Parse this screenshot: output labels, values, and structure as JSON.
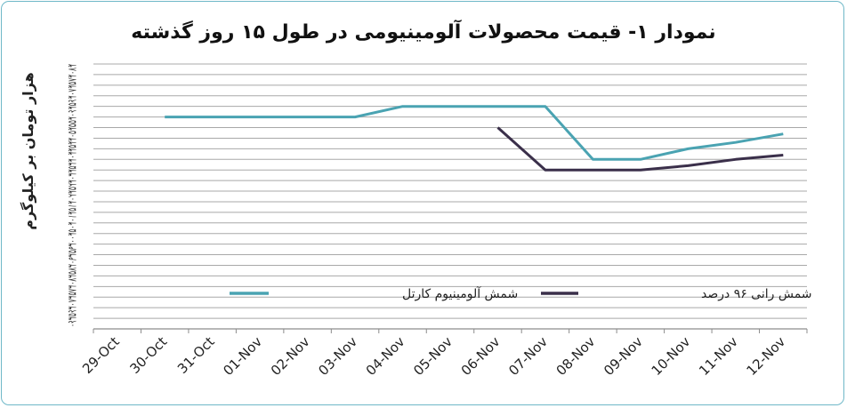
{
  "chart_data": {
    "type": "line",
    "title": "نمودار ۱- قیمت محصولات آلومینیومی در طول ۱۵ روز گذشته",
    "ylabel": "هزار تومان بر کیلوگرم",
    "categories": [
      "29-Oct",
      "30-Oct",
      "31-Oct",
      "01-Nov",
      "02-Nov",
      "03-Nov",
      "04-Nov",
      "05-Nov",
      "06-Nov",
      "07-Nov",
      "08-Nov",
      "09-Nov",
      "10-Nov",
      "11-Nov",
      "12-Nov"
    ],
    "yticks_raw": "۴۸۰۴۷۵۴۷۰۴۶۵۴۶۰۴۵۵۴۵۰۴۴۵۴۴۰۴۳۵۴۳۰۴۲۵۴۲۰۴۱۵۴۱۰۴۰۵۴۰۰۳۹۵۳۹۰۳۸۵۳۸۰۳۷۵۳۷۰۳۶۵۳۶۰",
    "ylim": [
      360,
      485
    ],
    "grid": true,
    "legend_position": "bottom",
    "series": [
      {
        "name": "شمش آلومینیوم کارتل",
        "color": "#4aa3b2",
        "values": [
          null,
          460,
          460,
          460,
          460,
          460,
          465,
          465,
          465,
          465,
          440,
          440,
          445,
          448,
          452
        ]
      },
      {
        "name": "شمش رانی ۹۶ درصد",
        "color": "#3a2f4a",
        "values": [
          null,
          null,
          null,
          null,
          null,
          null,
          null,
          null,
          455,
          435,
          435,
          435,
          437,
          440,
          442
        ]
      }
    ]
  }
}
